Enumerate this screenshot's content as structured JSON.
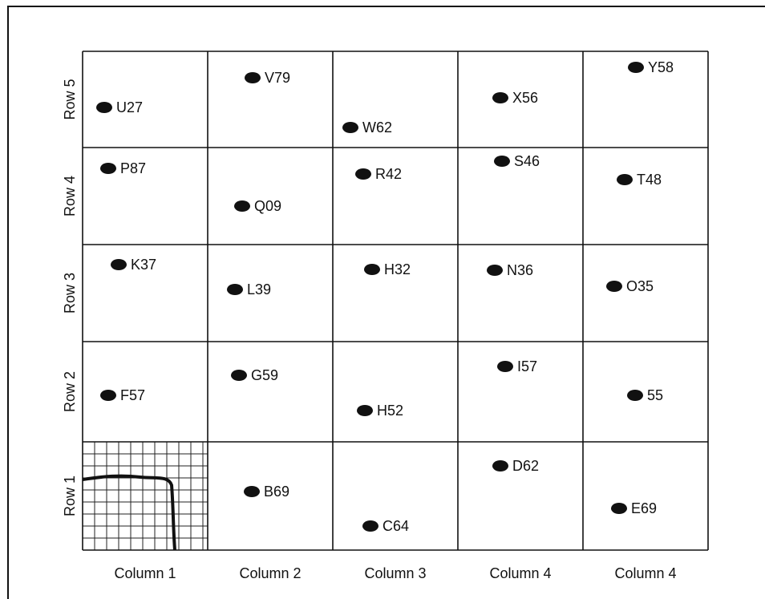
{
  "columns": [
    "Column 1",
    "Column 2",
    "Column 3",
    "Column 4",
    "Column 4"
  ],
  "rows": [
    {
      "label": "Row 5",
      "cells": [
        "U27",
        "V79",
        "W62",
        "X56",
        "Y58"
      ]
    },
    {
      "label": "Row 4",
      "cells": [
        "P87",
        "Q09",
        "R42",
        "S46",
        "T48"
      ]
    },
    {
      "label": "Row 3",
      "cells": [
        "K37",
        "L39",
        "H32",
        "N36",
        "O35"
      ]
    },
    {
      "label": "Row 2",
      "cells": [
        "F57",
        "G59",
        "H52",
        "I57",
        "55"
      ]
    },
    {
      "label": "Row 1",
      "cells": [
        null,
        "B69",
        "C64",
        "D62",
        "E69"
      ]
    }
  ]
}
